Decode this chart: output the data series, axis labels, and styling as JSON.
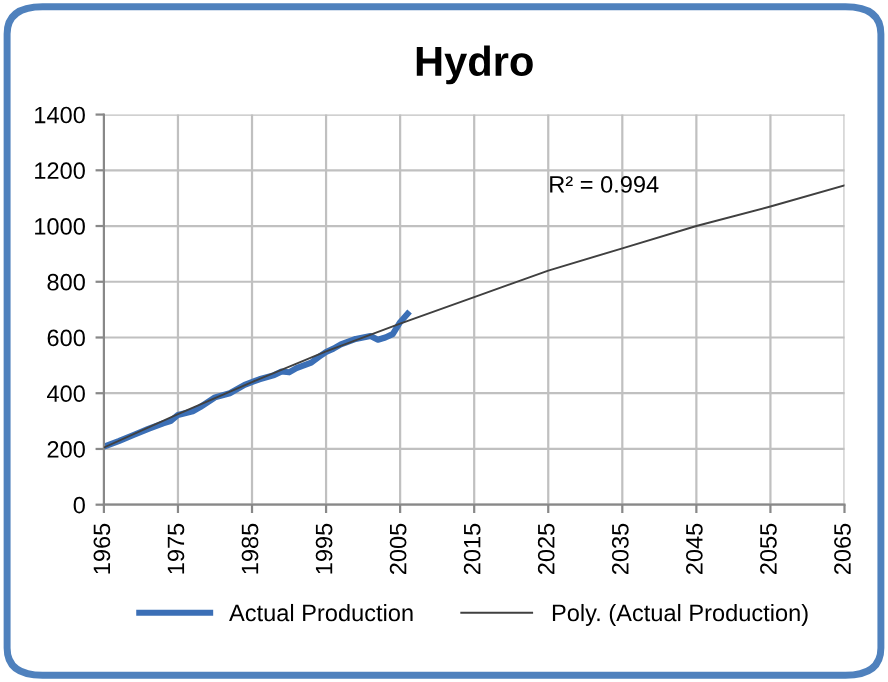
{
  "chart_data": {
    "type": "line",
    "title": "Hydro",
    "series": [
      {
        "name": "Actual Production",
        "color": "#3b6fb6",
        "x": [
          1965,
          1967,
          1969,
          1971,
          1973,
          1974,
          1975,
          1977,
          1978,
          1980,
          1982,
          1984,
          1986,
          1988,
          1989,
          1990,
          1991,
          1992,
          1993,
          1994,
          1995,
          1996,
          1997,
          1998,
          1999,
          2000,
          2001,
          2002,
          2003,
          2004,
          2005,
          2006
        ],
        "values": [
          208,
          228,
          250,
          272,
          292,
          300,
          322,
          335,
          350,
          385,
          400,
          430,
          450,
          465,
          478,
          475,
          490,
          500,
          510,
          530,
          548,
          560,
          575,
          585,
          595,
          600,
          605,
          592,
          600,
          612,
          655,
          685
        ]
      },
      {
        "name": "Poly. (Actual Production)",
        "color": "#404040",
        "type": "line",
        "x": [
          1965,
          1975,
          1985,
          1995,
          2005,
          2015,
          2025,
          2035,
          2045,
          2055,
          2065
        ],
        "values": [
          205,
          325,
          440,
          550,
          650,
          745,
          840,
          920,
          1000,
          1070,
          1146
        ]
      }
    ],
    "xlim": [
      1965,
      2065
    ],
    "xticks": [
      1965,
      1975,
      1985,
      1995,
      2005,
      2015,
      2025,
      2035,
      2045,
      2055,
      2065
    ],
    "ylim": [
      0,
      1400
    ],
    "yticks": [
      0,
      200,
      400,
      600,
      800,
      1000,
      1200,
      1400
    ],
    "grid": true,
    "legend": "bottom",
    "annotations": [
      "R² = 0.994"
    ]
  }
}
